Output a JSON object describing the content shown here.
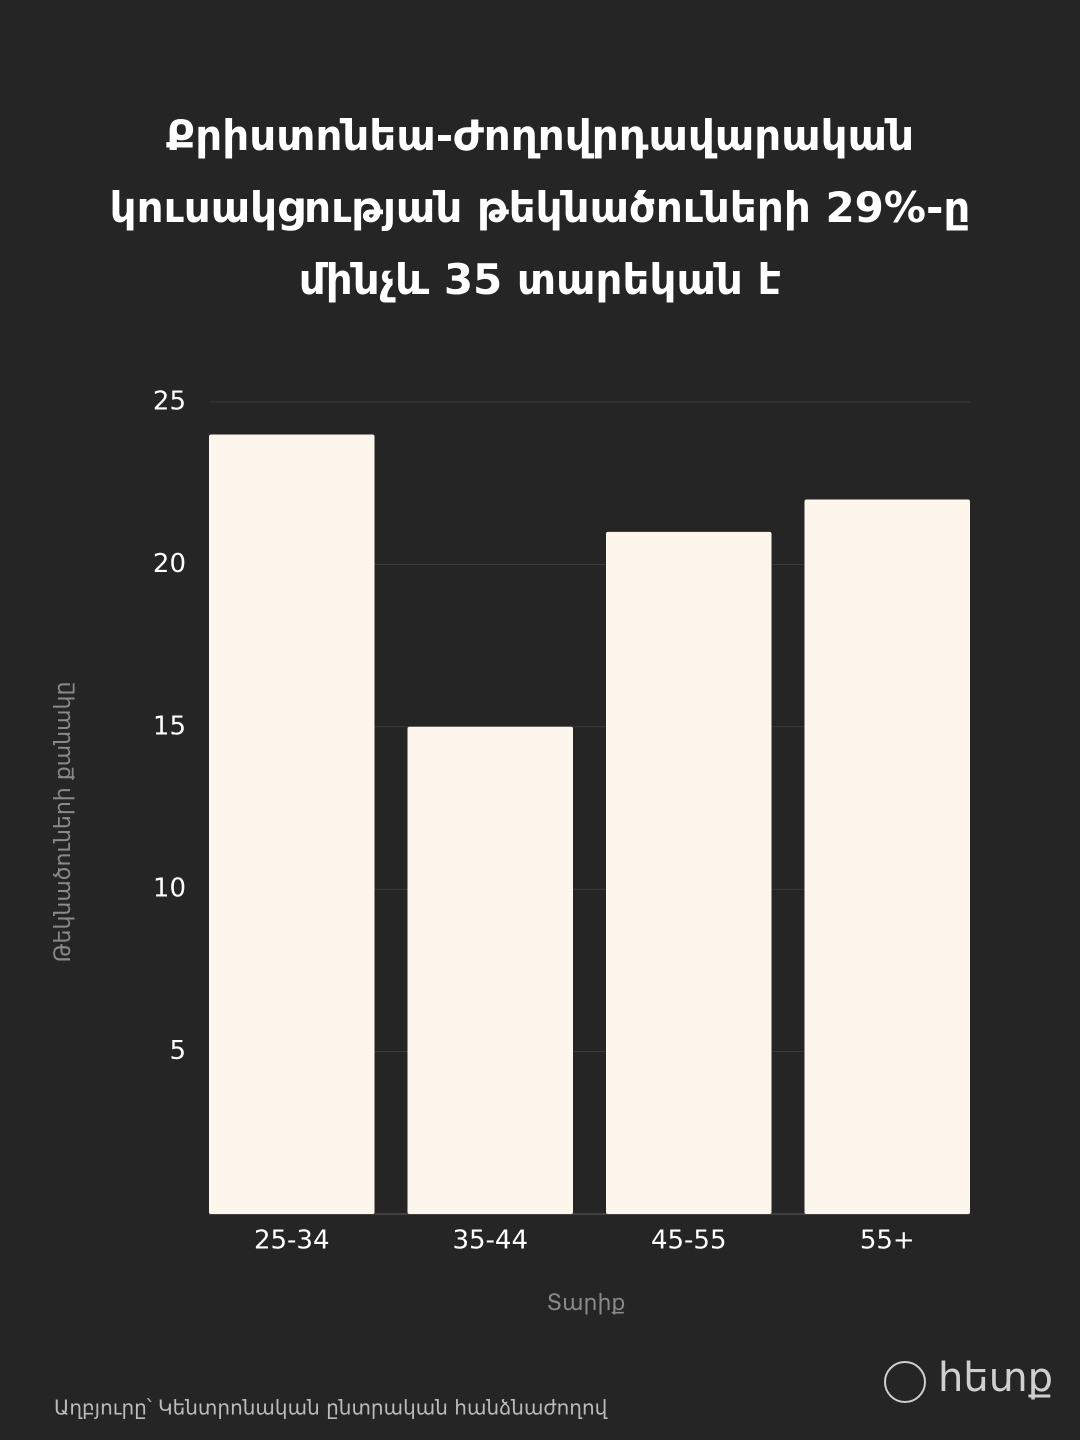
{
  "chart_data": {
    "type": "bar",
    "title": "Քրիստոնեա-Ժողովրդավարական կուսակցության թեկնածուների 29%-ը մինչև 35 տարեկան է",
    "categories": [
      "25-34",
      "35-44",
      "45-55",
      "55+"
    ],
    "values": [
      24,
      15,
      21,
      22
    ],
    "color": "#fdf6ec",
    "ylim": [
      0,
      25
    ],
    "yticks": [
      5,
      10,
      15,
      20,
      25
    ],
    "grid": true,
    "x_label": "Տարիք",
    "y_label": "Թեկնածուների քանակը",
    "source": "Աղբյուրը՝ Կենտրոնական ընտրական հանձնաժողով",
    "logo": "hետք"
  }
}
